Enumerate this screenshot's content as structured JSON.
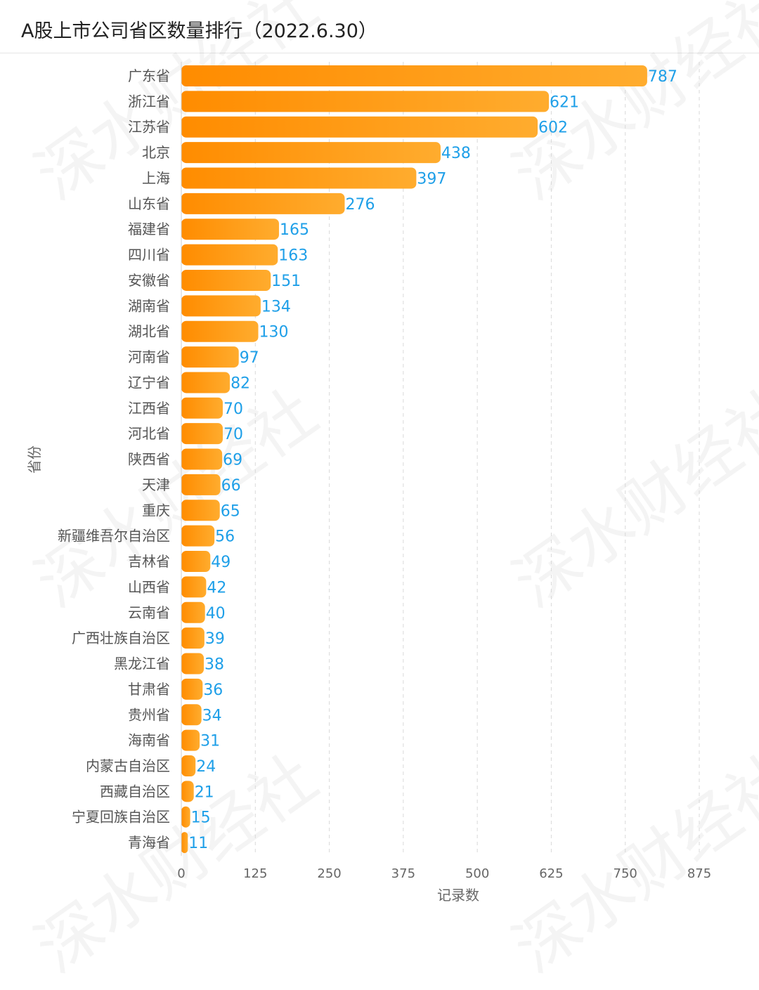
{
  "header": {
    "title": "A股上市公司省区数量排行（2022.6.30）"
  },
  "watermark": "深水财经社",
  "colors": {
    "bar_start": "#ff8c00",
    "bar_end": "#ffac2e",
    "value_label": "#1e9fe8",
    "category_label": "#555555",
    "axis_text": "#666666",
    "grid": "#d9d9d9"
  },
  "chart_data": {
    "type": "bar",
    "orientation": "horizontal",
    "title": "A股上市公司省区数量排行（2022.6.30）",
    "xlabel": "记录数",
    "ylabel": "省份",
    "xlim": [
      0,
      875
    ],
    "xticks": [
      "0",
      "125",
      "250",
      "375",
      "500",
      "625",
      "750",
      "875"
    ],
    "grid": "vertical dashed",
    "categories": [
      "广东省",
      "浙江省",
      "江苏省",
      "北京",
      "上海",
      "山东省",
      "福建省",
      "四川省",
      "安徽省",
      "湖南省",
      "湖北省",
      "河南省",
      "辽宁省",
      "江西省",
      "河北省",
      "陕西省",
      "天津",
      "重庆",
      "新疆维吾尔自治区",
      "吉林省",
      "山西省",
      "云南省",
      "广西壮族自治区",
      "黑龙江省",
      "甘肃省",
      "贵州省",
      "海南省",
      "内蒙古自治区",
      "西藏自治区",
      "宁夏回族自治区",
      "青海省"
    ],
    "values": [
      787,
      621,
      602,
      438,
      397,
      276,
      165,
      163,
      151,
      134,
      130,
      97,
      82,
      70,
      70,
      69,
      66,
      65,
      56,
      49,
      42,
      40,
      39,
      38,
      36,
      34,
      31,
      24,
      21,
      15,
      11
    ]
  }
}
